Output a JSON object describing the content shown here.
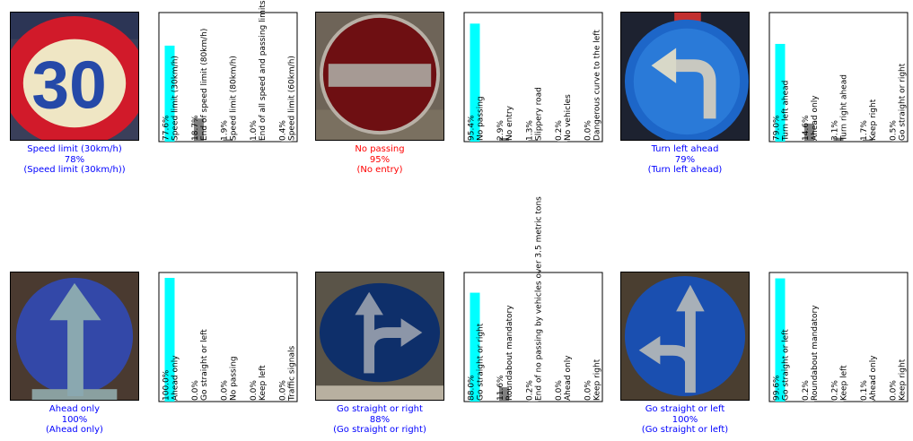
{
  "colors": {
    "correct": "#0000ff",
    "wrong": "#ff0000",
    "top_bar": "#00ffff",
    "other_bar": "#808080"
  },
  "samples": [
    {
      "caption": {
        "prediction": "Speed limit (30km/h)",
        "confidence": "78%",
        "true_label": "(Speed limit (30km/h))",
        "status": "correct"
      },
      "image_icon": "speed-limit-30-sign",
      "sign_text": "30",
      "chart_data": {
        "type": "bar",
        "ylim": [
          0,
          100
        ],
        "categories": [
          "Speed limit (30km/h)",
          "End of speed limit (80km/h)",
          "Speed limit (80km/h)",
          "End of all speed and passing limits",
          "Speed limit (60km/h)"
        ],
        "values": [
          77.6,
          18.7,
          1.9,
          1.0,
          0.4
        ],
        "labels": [
          "77.6%",
          "18.7%",
          "1.9%",
          "1.0%",
          "0.4%"
        ]
      }
    },
    {
      "caption": {
        "prediction": "No passing",
        "confidence": "95%",
        "true_label": "(No entry)",
        "status": "wrong"
      },
      "image_icon": "no-entry-sign",
      "chart_data": {
        "type": "bar",
        "ylim": [
          0,
          100
        ],
        "categories": [
          "No passing",
          "No entry",
          "Slippery road",
          "No vehicles",
          "Dangerous curve to the left"
        ],
        "values": [
          95.4,
          2.9,
          1.3,
          0.2,
          0.0
        ],
        "labels": [
          "95.4%",
          "2.9%",
          "1.3%",
          "0.2%",
          "0.0%"
        ]
      }
    },
    {
      "caption": {
        "prediction": "Turn left ahead",
        "confidence": "79%",
        "true_label": "(Turn left ahead)",
        "status": "correct"
      },
      "image_icon": "turn-left-ahead-sign",
      "chart_data": {
        "type": "bar",
        "ylim": [
          0,
          100
        ],
        "categories": [
          "Turn left ahead",
          "Ahead only",
          "Turn right ahead",
          "Keep right",
          "Go straight or right"
        ],
        "values": [
          79.0,
          14.6,
          3.1,
          1.7,
          0.5
        ],
        "labels": [
          "79.0%",
          "14.6%",
          "3.1%",
          "1.7%",
          "0.5%"
        ]
      }
    },
    {
      "caption": {
        "prediction": "Ahead only",
        "confidence": "100%",
        "true_label": "(Ahead only)",
        "status": "correct"
      },
      "image_icon": "ahead-only-sign",
      "chart_data": {
        "type": "bar",
        "ylim": [
          0,
          100
        ],
        "categories": [
          "Ahead only",
          "Go straight or left",
          "No passing",
          "Keep left",
          "Traffic signals"
        ],
        "values": [
          100.0,
          0.0,
          0.0,
          0.0,
          0.0
        ],
        "labels": [
          "100.0%",
          "0.0%",
          "0.0%",
          "0.0%",
          "0.0%"
        ]
      }
    },
    {
      "caption": {
        "prediction": "Go straight or right",
        "confidence": "88%",
        "true_label": "(Go straight or right)",
        "status": "correct"
      },
      "image_icon": "go-straight-or-right-sign",
      "chart_data": {
        "type": "bar",
        "ylim": [
          0,
          100
        ],
        "categories": [
          "Go straight or right",
          "Roundabout mandatory",
          "End of no passing by vehicles over 3.5 metric tons",
          "Ahead only",
          "Keep right"
        ],
        "values": [
          88.0,
          11.6,
          0.2,
          0.0,
          0.0
        ],
        "labels": [
          "88.0%",
          "11.6%",
          "0.2%",
          "0.0%",
          "0.0%"
        ]
      }
    },
    {
      "caption": {
        "prediction": "Go straight or left",
        "confidence": "100%",
        "true_label": "(Go straight or left)",
        "status": "correct"
      },
      "image_icon": "go-straight-or-left-sign",
      "chart_data": {
        "type": "bar",
        "ylim": [
          0,
          100
        ],
        "categories": [
          "Go straight or left",
          "Roundabout mandatory",
          "Keep left",
          "Ahead only",
          "Keep right"
        ],
        "values": [
          99.6,
          0.2,
          0.2,
          0.1,
          0.0
        ],
        "labels": [
          "99.6%",
          "0.2%",
          "0.2%",
          "0.1%",
          "0.0%"
        ]
      }
    }
  ]
}
